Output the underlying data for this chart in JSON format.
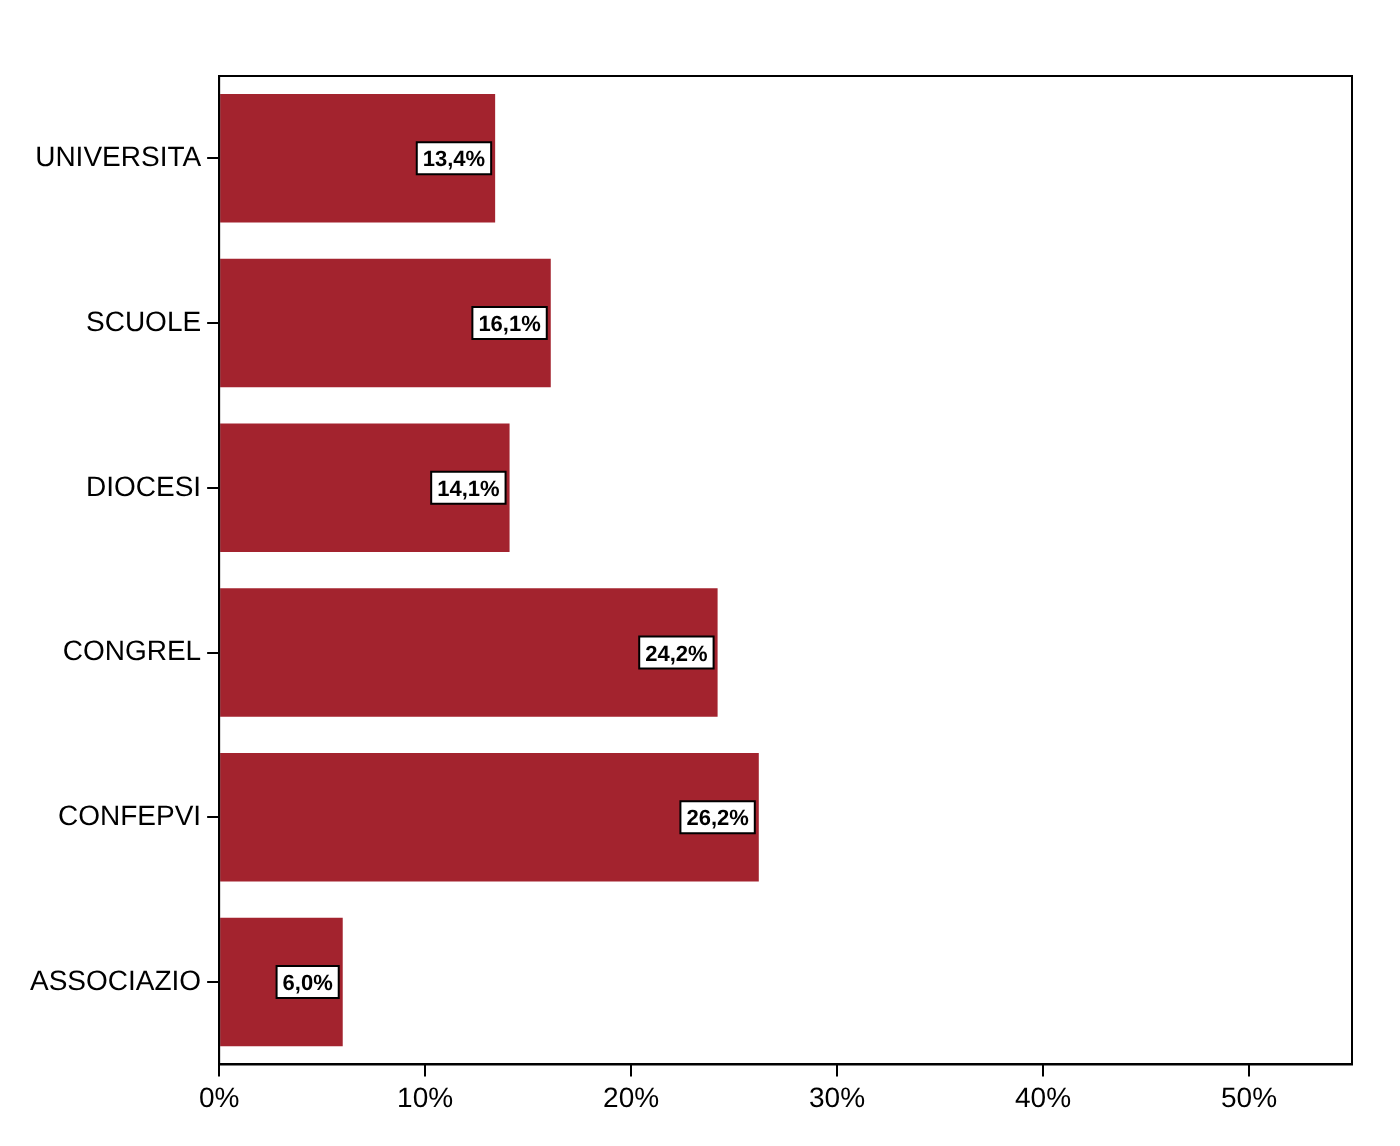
{
  "chart_data": {
    "type": "bar",
    "orientation": "horizontal",
    "categories": [
      "UNIVERSITA",
      "SCUOLE",
      "DIOCESI",
      "CONGREL",
      "CONFEPVI",
      "ASSOCIAZIO"
    ],
    "values": [
      13.4,
      16.1,
      14.1,
      24.2,
      26.2,
      6.0
    ],
    "value_labels": [
      "13,4%",
      "16,1%",
      "14,1%",
      "24,2%",
      "26,2%",
      "6,0%"
    ],
    "color": "#a3232e",
    "xlim": [
      0,
      55
    ],
    "xticks": [
      {
        "value": 0,
        "label": "0%"
      },
      {
        "value": 10,
        "label": "10%"
      },
      {
        "value": 20,
        "label": "20%"
      },
      {
        "value": 30,
        "label": "30%"
      },
      {
        "value": 40,
        "label": "40%"
      },
      {
        "value": 50,
        "label": "50%"
      }
    ],
    "grid": false,
    "legend": false
  }
}
